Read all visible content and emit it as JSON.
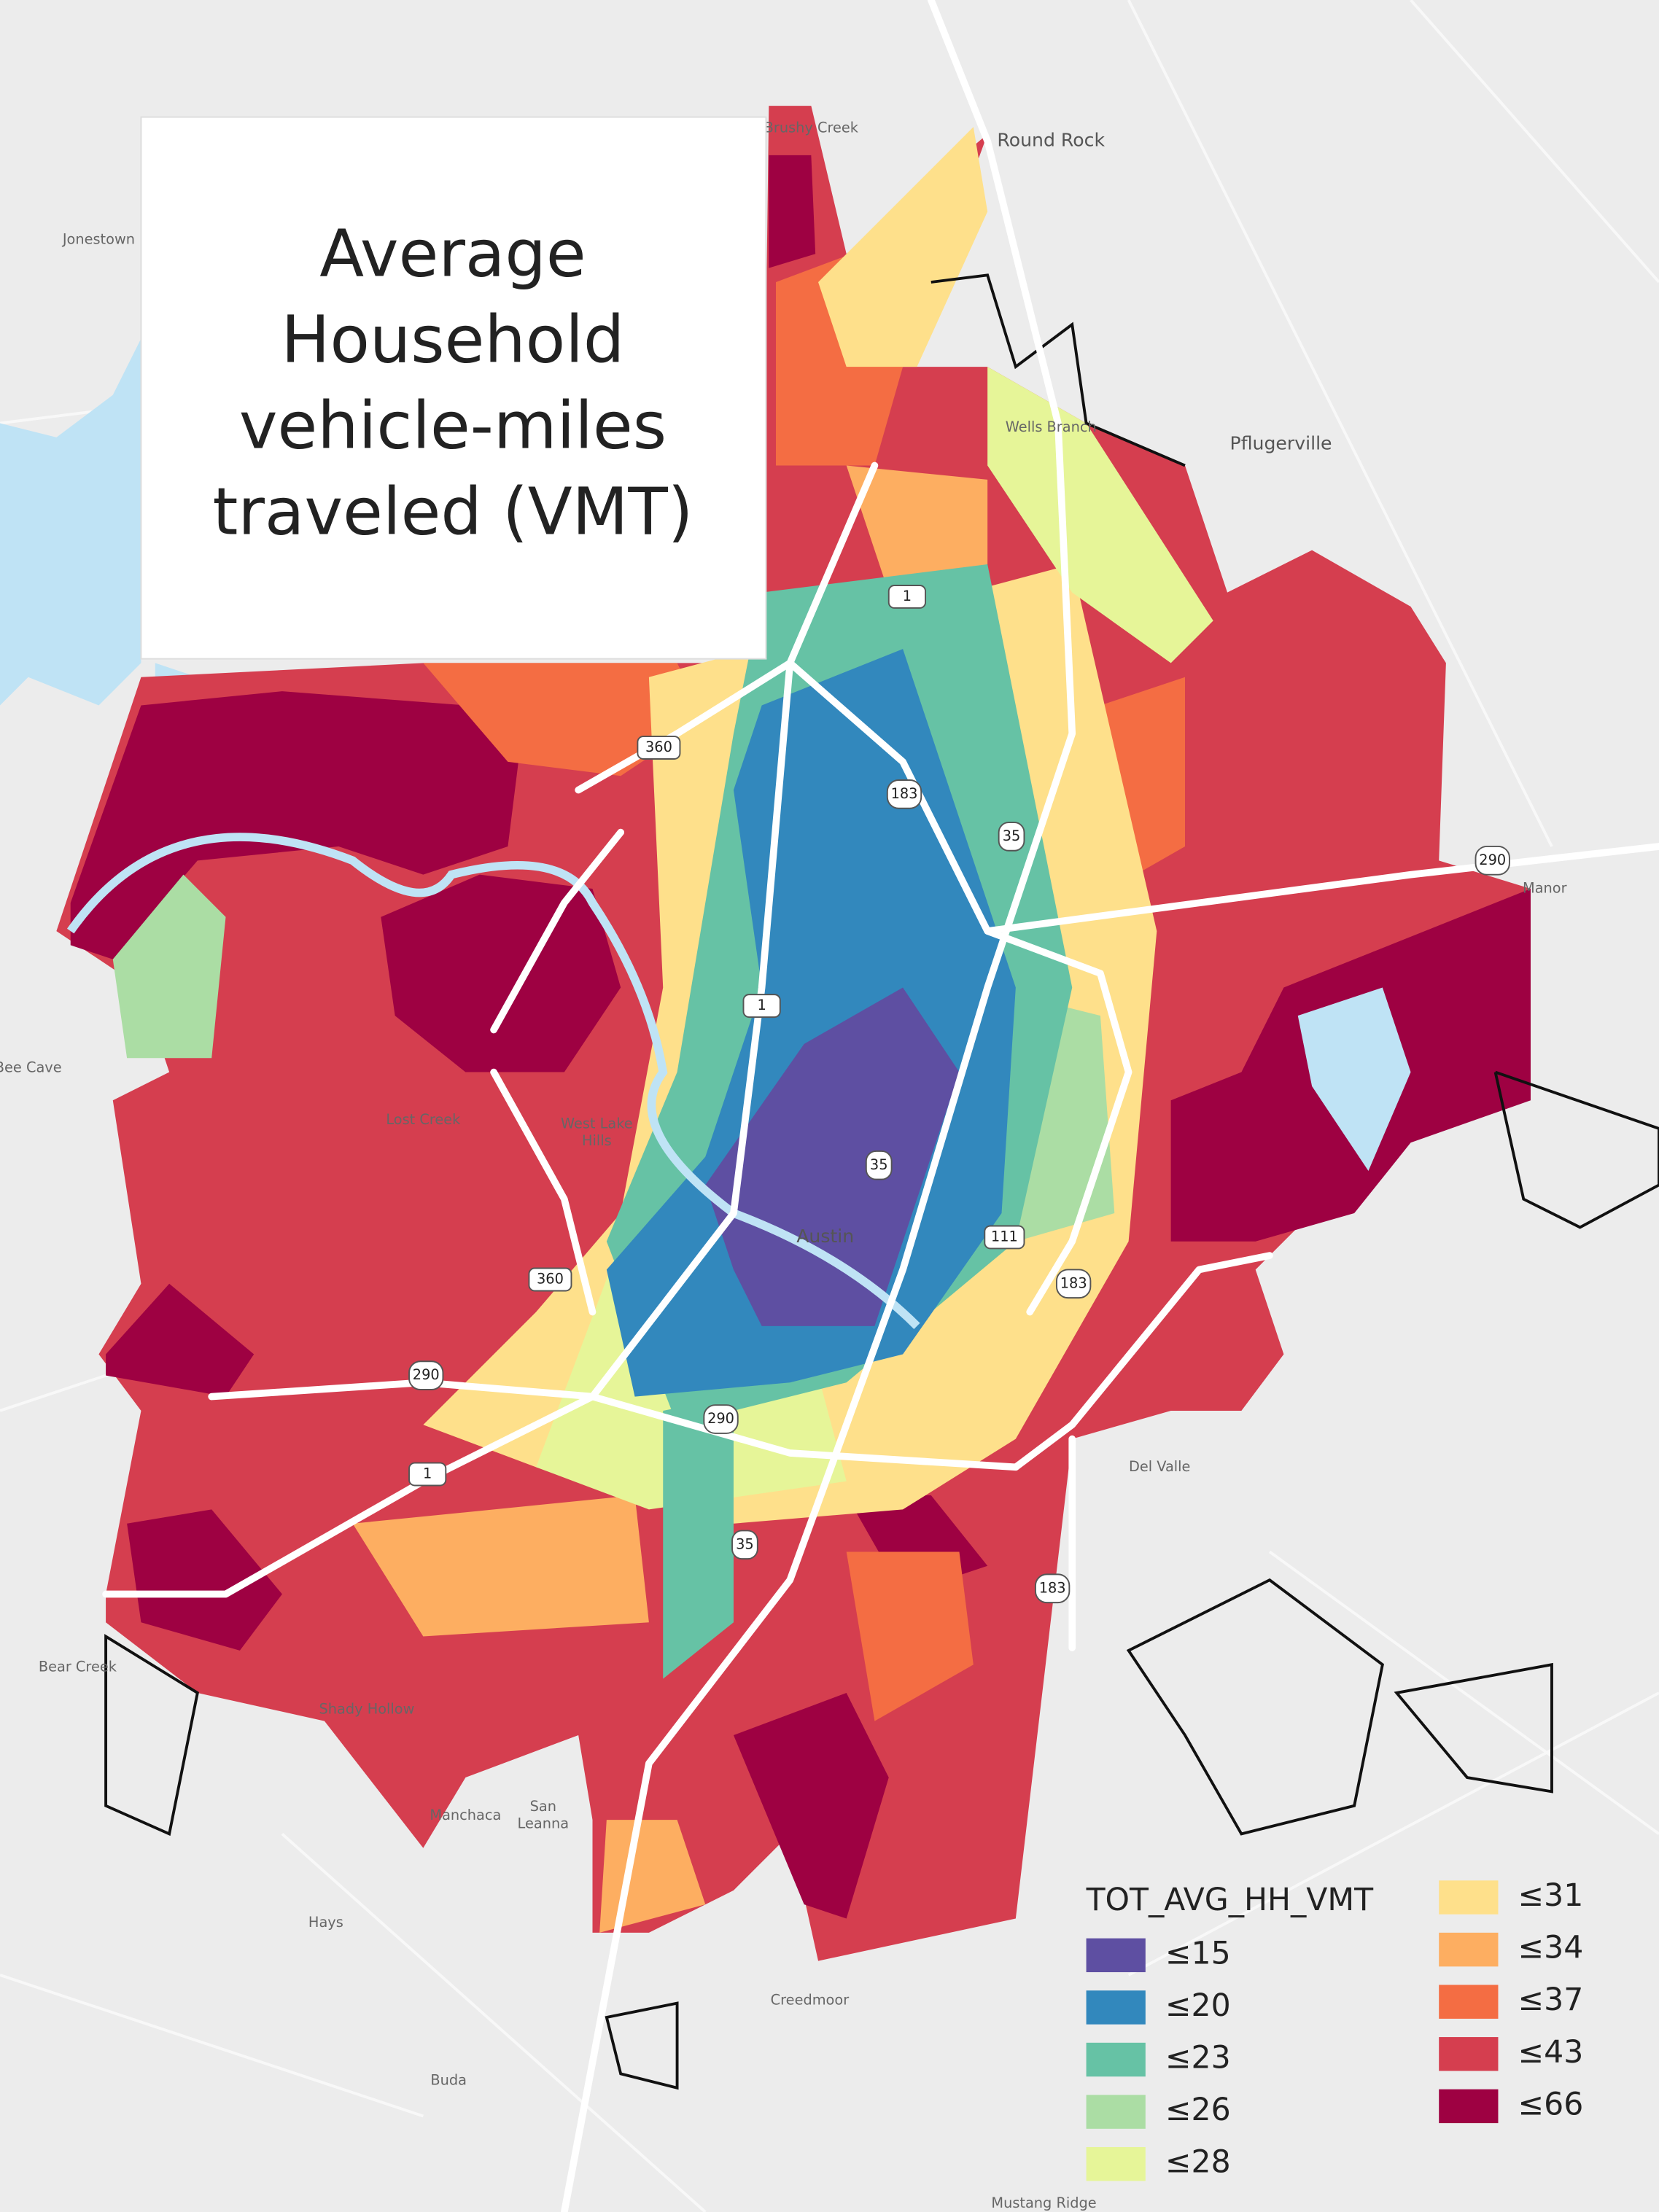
{
  "title_lines": [
    "Average",
    "Household",
    "vehicle-miles",
    "traveled (VMT)"
  ],
  "legend": {
    "title": "TOT_AVG_HH_VMT",
    "items": [
      {
        "label": "≤15",
        "color": "#5e4fa2"
      },
      {
        "label": "≤20",
        "color": "#3288bd"
      },
      {
        "label": "≤23",
        "color": "#66c2a5"
      },
      {
        "label": "≤26",
        "color": "#abdda4"
      },
      {
        "label": "≤28",
        "color": "#e6f598"
      },
      {
        "label": "≤31",
        "color": "#fee08b"
      },
      {
        "label": "≤34",
        "color": "#fdae61"
      },
      {
        "label": "≤37",
        "color": "#f46d43"
      },
      {
        "label": "≤43",
        "color": "#d53e4f"
      },
      {
        "label": "≤66",
        "color": "#9e0142"
      }
    ]
  },
  "places": [
    "Brushy Creek",
    "Round Rock",
    "Jonestown",
    "Wells Branch",
    "Pflugerville",
    "Manor",
    "Bee Cave",
    "Lost Creek",
    "West Lake",
    "Hills",
    "Austin",
    "Del Valle",
    "Bear Creek",
    "Shady Hollow",
    "Manchaca",
    "San",
    "Leanna",
    "Hays",
    "Creedmoor",
    "Buda",
    "Mustang Ridge"
  ],
  "shields": [
    "1",
    "360",
    "183",
    "35",
    "290",
    "1",
    "35",
    "111",
    "183",
    "360",
    "290",
    "290",
    "1",
    "35",
    "183"
  ]
}
